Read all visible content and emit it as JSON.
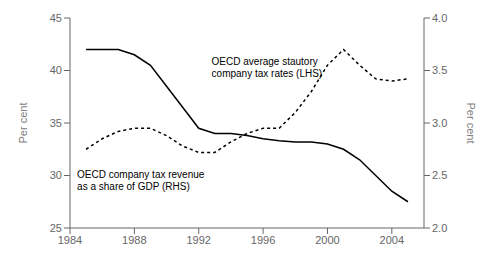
{
  "chart_data": {
    "type": "line",
    "x": [
      1985,
      1986,
      1987,
      1988,
      1989,
      1990,
      1991,
      1992,
      1993,
      1994,
      1995,
      1996,
      1997,
      1998,
      1999,
      2000,
      2001,
      2002,
      2003,
      2004,
      2005
    ],
    "xlim": [
      1984,
      2006
    ],
    "xticks": [
      1984,
      1988,
      1992,
      1996,
      2000,
      2004
    ],
    "ylim": [
      25,
      45
    ],
    "yticks": [
      25,
      30,
      35,
      40,
      45
    ],
    "y2lim": [
      2.0,
      4.0
    ],
    "y2ticks": [
      {
        "value": 2.0,
        "label": "2.0"
      },
      2.5,
      {
        "value": 3.0,
        "label": "3.0"
      },
      3.5,
      {
        "value": 4.0,
        "label": "4.0"
      }
    ],
    "ylabel": "Per cent",
    "y2label": "Per cent",
    "grid": false,
    "series": [
      {
        "values": [
          42.0,
          42.0,
          42.0,
          41.5,
          40.5,
          38.5,
          36.5,
          34.5,
          34.0,
          34.0,
          33.8,
          33.5,
          33.3,
          33.2,
          33.2,
          33.0,
          32.5,
          31.5,
          30.0,
          28.5,
          27.5
        ],
        "color": "#000000",
        "line_style": "solid"
      },
      {
        "values": [
          2.75,
          2.85,
          2.92,
          2.95,
          2.95,
          2.88,
          2.78,
          2.72,
          2.72,
          2.82,
          2.9,
          2.95,
          2.95,
          3.1,
          3.3,
          3.55,
          3.7,
          3.55,
          3.42,
          3.4,
          3.42
        ],
        "color": "#000000",
        "line_style": "dashed",
        "axis": "y2"
      }
    ],
    "annotations": [
      "OECD average stautory\ncompany tax rates (LHS)",
      "OECD company tax revenue\nas a share of GDP (RHS)"
    ]
  }
}
